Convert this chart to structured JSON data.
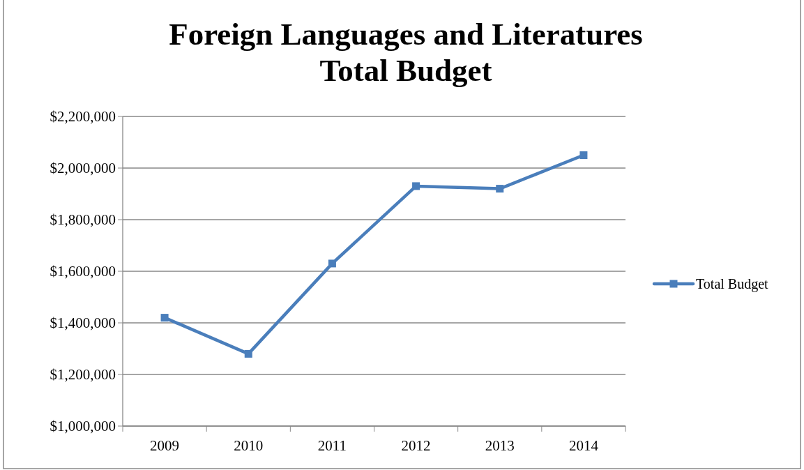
{
  "chart_data": {
    "type": "line",
    "title": "Foreign Languages and Literatures\nTotal Budget",
    "categories": [
      "2009",
      "2010",
      "2011",
      "2012",
      "2013",
      "2014"
    ],
    "series": [
      {
        "name": "Total Budget",
        "color": "#4a7ebb",
        "values": [
          1420000,
          1280000,
          1630000,
          1930000,
          1920000,
          2050000
        ]
      }
    ],
    "ylim": [
      1000000,
      2200000
    ],
    "yticks": [
      {
        "value": 1000000,
        "label": "$1,000,000"
      },
      {
        "value": 1200000,
        "label": "$1,200,000"
      },
      {
        "value": 1400000,
        "label": "$1,400,000"
      },
      {
        "value": 1600000,
        "label": "$1,600,000"
      },
      {
        "value": 1800000,
        "label": "$1,800,000"
      },
      {
        "value": 2000000,
        "label": "$2,000,000"
      },
      {
        "value": 2200000,
        "label": "$2,200,000"
      }
    ],
    "grid": "y",
    "legend": "right",
    "marker": "square",
    "line_style": "solid"
  }
}
